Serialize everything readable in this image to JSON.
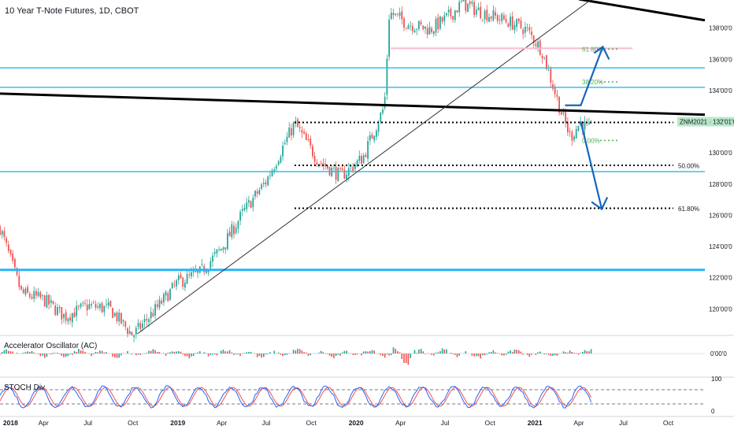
{
  "chart_title": "10 Year T-Note Futures, 1D, CBOT",
  "colors": {
    "up": "#26a69a",
    "down": "#ef5350",
    "hline": "#29b6f6",
    "trend": "#000000",
    "fib_green": "#4caf50",
    "fib_zone": "#f8bbd0",
    "arrow": "#1565c0",
    "stoch_k": "#2962ff",
    "stoch_d": "#ef5350",
    "price_tag_bg": "#b9e8c9"
  },
  "price_axis": {
    "ticks": [
      "138'00'0",
      "136'00'0",
      "134'00'0",
      "132'00'0",
      "130'00'0",
      "128'00'0",
      "126'00'0",
      "124'00'0",
      "122'00'0",
      "120'00'0"
    ],
    "tick_values": [
      138,
      136,
      134,
      132,
      130,
      128,
      126,
      124,
      122,
      120
    ],
    "range": [
      118.4,
      139.8
    ]
  },
  "time_axis": {
    "labels": [
      "2018",
      "Apr",
      "Jul",
      "Oct",
      "2019",
      "Apr",
      "Jul",
      "Oct",
      "2020",
      "Apr",
      "Jul",
      "Oct",
      "2021",
      "Apr",
      "Jul",
      "Oct"
    ],
    "bold": [
      true,
      false,
      false,
      false,
      true,
      false,
      false,
      false,
      true,
      false,
      false,
      false,
      true,
      false,
      false,
      false
    ],
    "start": "2018-01-02",
    "end": "2021-12-15"
  },
  "price_tag": {
    "label": "ZNM2021",
    "value": "132'01'0",
    "price": 132.0
  },
  "horizontal_lines": [
    135.45,
    134.2,
    128.8,
    122.5
  ],
  "trendlines": [
    {
      "from": {
        "date": "2018-01-02",
        "price": 133.8
      },
      "to": {
        "date": "2021-12-15",
        "price": 132.45
      },
      "width": 3
    },
    {
      "from": {
        "date": "2021-04-01",
        "price": 139.85
      },
      "to": {
        "date": "2021-12-15",
        "price": 138.5
      },
      "width": 3
    },
    {
      "from": {
        "date": "2018-10-10",
        "price": 118.4
      },
      "to": {
        "date": "2021-04-25",
        "price": 139.8
      },
      "width": 1
    }
  ],
  "fib_down": [
    {
      "price": 131.95,
      "label": ""
    },
    {
      "price": 129.2,
      "label": "50.00%"
    },
    {
      "price": 126.45,
      "label": "61.80%"
    }
  ],
  "fib_up": [
    {
      "price": 136.65,
      "label": "61.80%"
    },
    {
      "price": 134.55,
      "label": "38.20%"
    },
    {
      "price": 130.8,
      "label": "0.00%"
    }
  ],
  "fib_down_start": "2019-08-28",
  "fib_up_zone": {
    "from": "2020-03-12",
    "to": "2021-07-20",
    "price": 136.7
  },
  "arrows": [
    {
      "from": {
        "date": "2021-04-05",
        "price": 133.05
      },
      "to": {
        "date": "2021-05-20",
        "price": 136.8
      }
    },
    {
      "from": {
        "date": "2021-04-05",
        "price": 132.0
      },
      "to": {
        "date": "2021-05-18",
        "price": 126.4
      }
    }
  ],
  "indicators": [
    {
      "name": "Accelerator Oscillator (AC)",
      "ticks": [
        "0'00'0"
      ]
    },
    {
      "name": "STOCH Div",
      "ticks": [
        "100",
        "0"
      ],
      "bands": [
        80,
        20
      ]
    }
  ],
  "chart_data": {
    "type": "line",
    "title": "10 Year T-Note Futures, 1D, CBOT",
    "x_type": "date",
    "ylim": [
      118.4,
      139.8
    ],
    "series": [
      {
        "name": "",
        "x": [
          "2018-01-02",
          "2018-02-15",
          "2018-04-01",
          "2018-05-15",
          "2018-07-01",
          "2018-08-15",
          "2018-10-01",
          "2018-11-15",
          "2019-01-01",
          "2019-02-15",
          "2019-04-01",
          "2019-05-15",
          "2019-07-01",
          "2019-08-28",
          "2019-10-15",
          "2019-12-01",
          "2020-01-15",
          "2020-02-28",
          "2020-03-09",
          "2020-04-15",
          "2020-06-01",
          "2020-07-15",
          "2020-08-04",
          "2020-09-15",
          "2020-11-01",
          "2020-12-15",
          "2021-01-15",
          "2021-02-25",
          "2021-03-15",
          "2021-04-05",
          "2021-04-20"
        ],
        "values": [
          125.2,
          121.0,
          120.6,
          119.5,
          120.2,
          120.0,
          118.3,
          119.9,
          121.7,
          122.3,
          123.9,
          126.2,
          128.2,
          131.9,
          129.5,
          128.5,
          129.7,
          133.0,
          139.0,
          138.3,
          137.9,
          138.9,
          139.6,
          139.0,
          138.5,
          137.9,
          136.6,
          132.5,
          131.0,
          132.0,
          131.5
        ]
      }
    ]
  }
}
